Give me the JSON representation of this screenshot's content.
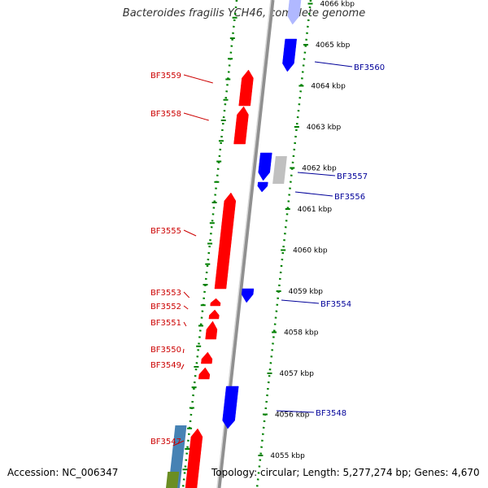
{
  "title": "Bacteroides fragilis YCH46, complete genome",
  "footer": {
    "accession": "Accession: NC_006347",
    "topology": "Topology: circular; Length: 5,277,274 bp; Genes: 4,670"
  },
  "colors": {
    "forward_gene": "#ff0000",
    "reverse_gene": "#0000ff",
    "grey_gene": "#c0c0c0",
    "steelblue_gene": "#4682b4",
    "olive_gene": "#6b8e23",
    "backbone": "#909090",
    "tick": "#008000",
    "left_label": "#cc0000",
    "right_label": "#000099"
  },
  "scale": {
    "unit": "kbp",
    "ticks": [
      {
        "kbp": 4066,
        "label": "4066 kbp"
      },
      {
        "kbp": 4065,
        "label": "4065 kbp"
      },
      {
        "kbp": 4064,
        "label": "4064 kbp"
      },
      {
        "kbp": 4063,
        "label": "4063 kbp"
      },
      {
        "kbp": 4062,
        "label": "4062 kbp"
      },
      {
        "kbp": 4061,
        "label": "4061 kbp"
      },
      {
        "kbp": 4060,
        "label": "4060 kbp"
      },
      {
        "kbp": 4059,
        "label": "4059 kbp"
      },
      {
        "kbp": 4058,
        "label": "4058 kbp"
      },
      {
        "kbp": 4057,
        "label": "4057 kbp"
      },
      {
        "kbp": 4056,
        "label": "4056 kbp"
      },
      {
        "kbp": 4055,
        "label": "4055 kbp"
      }
    ]
  },
  "genes_left": [
    {
      "name": "BF3559",
      "strand": "+"
    },
    {
      "name": "BF3558",
      "strand": "+"
    },
    {
      "name": "BF3555",
      "strand": "+"
    },
    {
      "name": "BF3553",
      "strand": "+"
    },
    {
      "name": "BF3552",
      "strand": "+"
    },
    {
      "name": "BF3551",
      "strand": "+"
    },
    {
      "name": "BF3550",
      "strand": "+"
    },
    {
      "name": "BF3549",
      "strand": "+"
    },
    {
      "name": "BF3547",
      "strand": "+"
    }
  ],
  "genes_right": [
    {
      "name": "BF3560",
      "strand": "-"
    },
    {
      "name": "BF3557",
      "strand": "-"
    },
    {
      "name": "BF3556",
      "strand": "-"
    },
    {
      "name": "BF3554",
      "strand": "-"
    },
    {
      "name": "BF3548",
      "strand": "-"
    }
  ]
}
